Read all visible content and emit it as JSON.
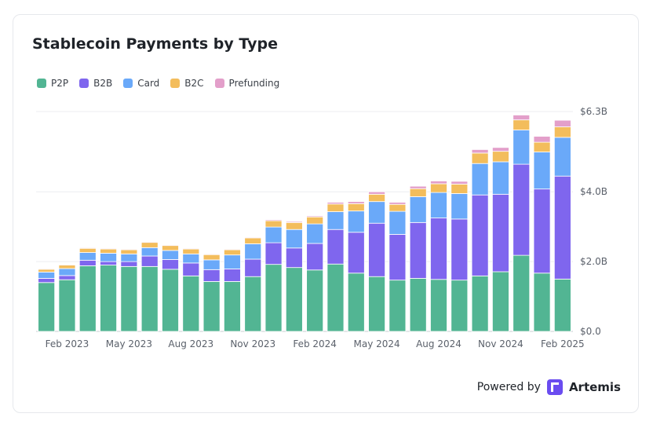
{
  "colors": {
    "P2P": "#52b593",
    "B2B": "#7f66ee",
    "Card": "#6aa9f9",
    "B2C": "#f3bd5c",
    "Prefunding": "#e39fca"
  },
  "footer": {
    "powered_by": "Powered by",
    "brand": "Artemis"
  },
  "chart_data": {
    "type": "bar",
    "stacked": true,
    "title": "Stablecoin Payments by Type",
    "xlabel": "",
    "ylabel": "",
    "ylim": [
      0,
      6.3
    ],
    "y_ticks": [
      {
        "value": 0,
        "label": "$0.0"
      },
      {
        "value": 2.0,
        "label": "$2.0B"
      },
      {
        "value": 4.0,
        "label": "$4.0B"
      },
      {
        "value": 6.3,
        "label": "$6.3B"
      }
    ],
    "x_tick_labels": [
      {
        "index": 1,
        "label": "Feb 2023"
      },
      {
        "index": 4,
        "label": "May 2023"
      },
      {
        "index": 7,
        "label": "Aug 2023"
      },
      {
        "index": 10,
        "label": "Nov 2023"
      },
      {
        "index": 13,
        "label": "Feb 2024"
      },
      {
        "index": 16,
        "label": "May 2024"
      },
      {
        "index": 19,
        "label": "Aug 2024"
      },
      {
        "index": 22,
        "label": "Nov 2024"
      },
      {
        "index": 25,
        "label": "Feb 2025"
      }
    ],
    "legend_position": "top-left",
    "grid": true,
    "categories": [
      "Jan 2023",
      "Feb 2023",
      "Mar 2023",
      "Apr 2023",
      "May 2023",
      "Jun 2023",
      "Jul 2023",
      "Aug 2023",
      "Sep 2023",
      "Oct 2023",
      "Nov 2023",
      "Dec 2023",
      "Jan 2024",
      "Feb 2024",
      "Mar 2024",
      "Apr 2024",
      "May 2024",
      "Jun 2024",
      "Jul 2024",
      "Aug 2024",
      "Sep 2024",
      "Oct 2024",
      "Nov 2024",
      "Dec 2024",
      "Jan 2025",
      "Feb 2025"
    ],
    "series": [
      {
        "name": "P2P",
        "values": [
          1.4,
          1.48,
          1.88,
          1.9,
          1.86,
          1.86,
          1.78,
          1.59,
          1.43,
          1.43,
          1.57,
          1.92,
          1.83,
          1.76,
          1.93,
          1.67,
          1.57,
          1.47,
          1.52,
          1.49,
          1.47,
          1.59,
          1.71,
          2.18,
          1.67,
          1.5
        ]
      },
      {
        "name": "B2B",
        "values": [
          0.12,
          0.12,
          0.16,
          0.1,
          0.14,
          0.3,
          0.28,
          0.37,
          0.34,
          0.36,
          0.5,
          0.62,
          0.56,
          0.76,
          0.99,
          1.17,
          1.53,
          1.31,
          1.6,
          1.76,
          1.75,
          2.32,
          2.22,
          2.61,
          2.41,
          2.95
        ]
      },
      {
        "name": "Card",
        "values": [
          0.18,
          0.2,
          0.22,
          0.24,
          0.22,
          0.24,
          0.26,
          0.26,
          0.28,
          0.4,
          0.44,
          0.45,
          0.53,
          0.56,
          0.51,
          0.61,
          0.62,
          0.66,
          0.74,
          0.73,
          0.73,
          0.9,
          0.93,
          0.98,
          1.06,
          1.11
        ]
      },
      {
        "name": "B2C",
        "values": [
          0.08,
          0.1,
          0.12,
          0.12,
          0.12,
          0.15,
          0.14,
          0.14,
          0.15,
          0.15,
          0.17,
          0.18,
          0.2,
          0.2,
          0.22,
          0.21,
          0.21,
          0.2,
          0.23,
          0.25,
          0.27,
          0.3,
          0.3,
          0.29,
          0.28,
          0.3
        ]
      },
      {
        "name": "Prefunding",
        "values": [
          0.02,
          0.02,
          0.02,
          0.02,
          0.02,
          0.02,
          0.02,
          0.02,
          0.02,
          0.02,
          0.02,
          0.03,
          0.03,
          0.03,
          0.05,
          0.06,
          0.07,
          0.06,
          0.07,
          0.08,
          0.08,
          0.1,
          0.11,
          0.14,
          0.17,
          0.19
        ]
      }
    ]
  }
}
